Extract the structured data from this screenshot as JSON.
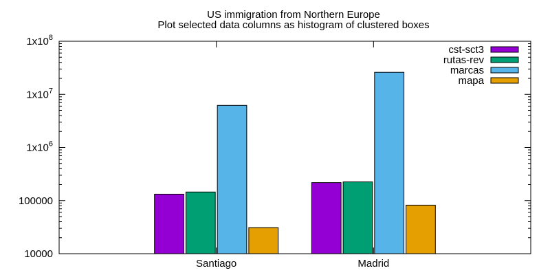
{
  "chart_data": {
    "type": "bar",
    "title": "US immigration from Northern Europe",
    "subtitle": "Plot selected data columns as histogram of clustered boxes",
    "categories": [
      "Santiago",
      "Madrid"
    ],
    "series": [
      {
        "name": "cst-sct3",
        "values": [
          132000,
          218000
        ],
        "color": "#9400d3"
      },
      {
        "name": "rutas-rev",
        "values": [
          145000,
          225000
        ],
        "color": "#009e73"
      },
      {
        "name": "marcas",
        "values": [
          6200000,
          26000000
        ],
        "color": "#56b4e9"
      },
      {
        "name": "mapa",
        "values": [
          31000,
          82000
        ],
        "color": "#e69f00"
      }
    ],
    "y_scale": "log",
    "ylim": [
      10000,
      100000000
    ],
    "y_ticks": [
      {
        "value": 10000,
        "label": "10000"
      },
      {
        "value": 100000,
        "label": "100000"
      },
      {
        "value": 1000000,
        "base": "1x10",
        "exp": "6"
      },
      {
        "value": 10000000,
        "base": "1x10",
        "exp": "7"
      },
      {
        "value": 100000000,
        "base": "1x10",
        "exp": "8"
      }
    ],
    "xlabel": "",
    "ylabel": "",
    "grid": false,
    "legend_position": "top-right"
  }
}
